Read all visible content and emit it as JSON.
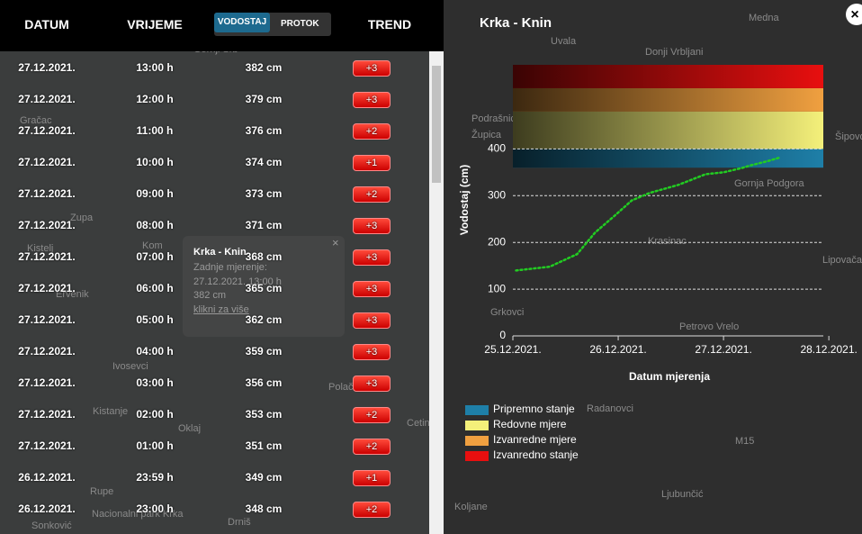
{
  "header": {
    "columns": [
      "DATUM",
      "VRIJEME",
      "TREND"
    ],
    "toggle": [
      "VODOSTAJ",
      "PROTOK"
    ]
  },
  "table": {
    "rows": [
      [
        "27.12.2021.",
        "13:00 h",
        "382 cm",
        "+3"
      ],
      [
        "27.12.2021.",
        "12:00 h",
        "379 cm",
        "+3"
      ],
      [
        "27.12.2021.",
        "11:00 h",
        "376 cm",
        "+2"
      ],
      [
        "27.12.2021.",
        "10:00 h",
        "374 cm",
        "+1"
      ],
      [
        "27.12.2021.",
        "09:00 h",
        "373 cm",
        "+2"
      ],
      [
        "27.12.2021.",
        "08:00 h",
        "371 cm",
        "+3"
      ],
      [
        "27.12.2021.",
        "07:00 h",
        "368 cm",
        "+3"
      ],
      [
        "27.12.2021.",
        "06:00 h",
        "365 cm",
        "+3"
      ],
      [
        "27.12.2021.",
        "05:00 h",
        "362 cm",
        "+3"
      ],
      [
        "27.12.2021.",
        "04:00 h",
        "359 cm",
        "+3"
      ],
      [
        "27.12.2021.",
        "03:00 h",
        "356 cm",
        "+3"
      ],
      [
        "27.12.2021.",
        "02:00 h",
        "353 cm",
        "+2"
      ],
      [
        "27.12.2021.",
        "01:00 h",
        "351 cm",
        "+2"
      ],
      [
        "26.12.2021.",
        "23:59 h",
        "349 cm",
        "+1"
      ],
      [
        "26.12.2021.",
        "23:00 h",
        "348 cm",
        "+2"
      ]
    ]
  },
  "popup": {
    "title": "Krka - Knin",
    "lines": [
      "Zadnje mjerenje:",
      "27.12.2021. 13:00 h",
      "382 cm"
    ],
    "link": "klikni za više"
  },
  "map": {
    "labels": [
      "Gornji Srb",
      "Gračac",
      "Zupa",
      "Kistelj",
      "Kom",
      "Ervenik",
      "Ivosevci",
      "Kistanje",
      "Oklaj",
      "Rupe",
      "Nacionalni park Krka",
      "Sonković",
      "Drniš",
      "Polača",
      "Cetina",
      "Uvala",
      "Donji Vrbljani",
      "Mednа",
      "Podrašnica",
      "Župica",
      "Šipovo",
      "Gornja Podgora",
      "Krasinac",
      "Lipovača",
      "Grkovci",
      "Petrovo Vrelo",
      "Radanovci",
      "Ljubunčić",
      "Koljane",
      "M15"
    ]
  },
  "chart_data": {
    "type": "line",
    "title": "Krka - Knin",
    "ylabel": "Vodostaj (cm)",
    "xlabel": "Datum mjerenja",
    "x": [
      0.03,
      0.35,
      0.61,
      0.78,
      0.96,
      1.13,
      1.3,
      1.57,
      1.83,
      2.0,
      2.17,
      2.26,
      2.42,
      2.54
    ],
    "series": [
      {
        "name": "Vodostaj",
        "color": "#22cc22",
        "values": [
          140,
          148,
          175,
          221,
          256,
          290,
          306,
          323,
          346,
          350,
          359,
          365,
          374,
          382
        ]
      }
    ],
    "xlim": [
      0,
      3.05
    ],
    "xticks": [
      {
        "value": 0,
        "label": "25.12.2021."
      },
      {
        "value": 1,
        "label": "26.12.2021."
      },
      {
        "value": 2,
        "label": "27.12.2021."
      },
      {
        "value": 3,
        "label": "28.12.2021."
      }
    ],
    "ylim": [
      0,
      580
    ],
    "yticks": [
      0,
      100,
      200,
      300,
      400
    ],
    "grid": true,
    "bands": [
      {
        "name": "Pripremno stanje",
        "color": "#1e7fa8",
        "range": [
          360,
          400
        ]
      },
      {
        "name": "Redovne mjere",
        "color": "#f4f07a",
        "range": [
          400,
          480
        ]
      },
      {
        "name": "Izvanredne mjere",
        "color": "#f0a040",
        "range": [
          480,
          530
        ]
      },
      {
        "name": "Izvanredno stanje",
        "color": "#e80f0f",
        "range": [
          530,
          580
        ]
      }
    ]
  }
}
